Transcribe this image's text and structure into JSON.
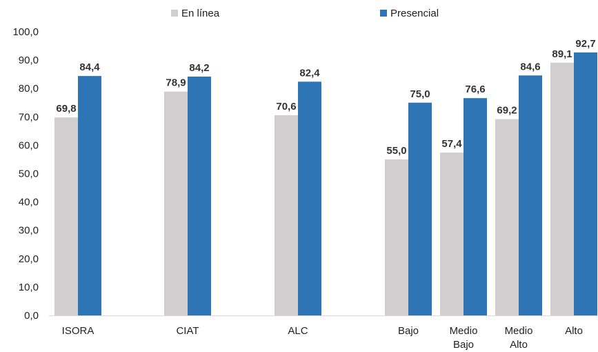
{
  "chart_data": {
    "type": "bar",
    "categories": [
      "ISORA",
      "CIAT",
      "ALC",
      "Bajo",
      "Medio Bajo",
      "Medio Alto",
      "Alto"
    ],
    "category_lines": [
      [
        "ISORA"
      ],
      [
        "CIAT"
      ],
      [
        "ALC"
      ],
      [
        "Bajo"
      ],
      [
        "Medio",
        "Bajo"
      ],
      [
        "Medio",
        "Alto"
      ],
      [
        "Alto"
      ]
    ],
    "series": [
      {
        "name": "En línea",
        "color": "#d0cece",
        "values": [
          69.8,
          78.9,
          70.6,
          55.0,
          57.4,
          69.2,
          89.1
        ],
        "labels": [
          "69,8",
          "78,9",
          "70,6",
          "55,0",
          "57,4",
          "69,2",
          "89,1"
        ]
      },
      {
        "name": "Presencial",
        "color": "#2e75b6",
        "values": [
          84.4,
          84.2,
          82.4,
          75.0,
          76.6,
          84.6,
          92.7
        ],
        "labels": [
          "84,4",
          "84,2",
          "82,4",
          "75,0",
          "76,6",
          "84,6",
          "92,7"
        ]
      }
    ],
    "yticks": [
      "0,0",
      "10,0",
      "20,0",
      "30,0",
      "40,0",
      "50,0",
      "60,0",
      "70,0",
      "80,0",
      "90,0",
      "100,0"
    ],
    "ylim": [
      0,
      100
    ],
    "grid": false,
    "legend": "top-center",
    "xlabel": "",
    "ylabel": "",
    "title": ""
  }
}
